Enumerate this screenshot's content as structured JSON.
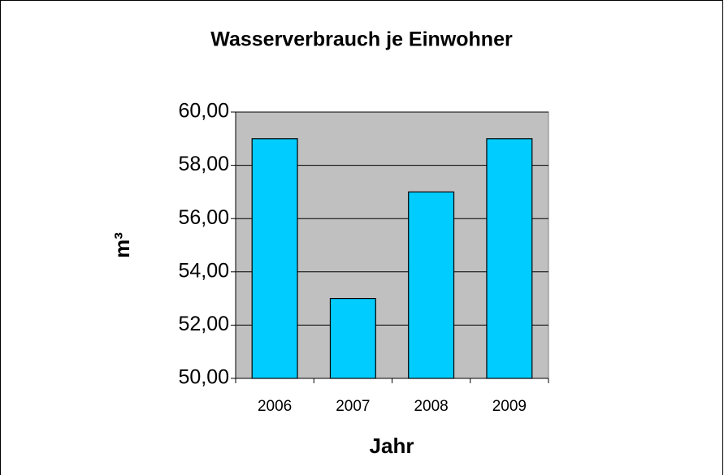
{
  "chart_data": {
    "type": "bar",
    "title": "Wasserverbrauch je Einwohner",
    "x_label": "Jahr",
    "y_label": "m³",
    "categories": [
      "2006",
      "2007",
      "2008",
      "2009"
    ],
    "values": [
      59,
      53,
      57,
      59
    ],
    "color": "#00ccff",
    "ylim": [
      50,
      60
    ],
    "yticks": [
      {
        "value": 50,
        "label": "50,00"
      },
      {
        "value": 52,
        "label": "52,00"
      },
      {
        "value": 54,
        "label": "54,00"
      },
      {
        "value": 56,
        "label": "56,00"
      },
      {
        "value": 58,
        "label": "58,00"
      },
      {
        "value": 60,
        "label": "60,00"
      }
    ],
    "grid": true,
    "plot_background": "#c0c0c0"
  }
}
